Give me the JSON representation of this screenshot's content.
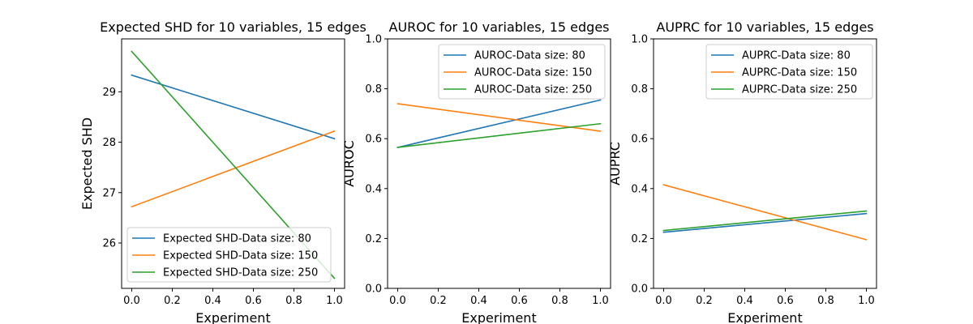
{
  "colors": {
    "blue": "#1f77b4",
    "orange": "#ff7f0e",
    "green": "#2ca02c"
  },
  "chart_data": [
    {
      "type": "line",
      "title": "Expected SHD for 10 variables, 15 edges",
      "xlabel": "Experiment",
      "ylabel": "Expected SHD",
      "xlim": [
        -0.05,
        1.05
      ],
      "ylim": [
        25.1,
        30.05
      ],
      "xticks": [
        0.0,
        0.2,
        0.4,
        0.6,
        0.8,
        1.0
      ],
      "xtick_labels": [
        "0.0",
        "0.2",
        "0.4",
        "0.6",
        "0.8",
        "1.0"
      ],
      "yticks": [
        26,
        27,
        28,
        29
      ],
      "ytick_labels": [
        "26",
        "27",
        "28",
        "29"
      ],
      "legend_position": "lower-left",
      "grid": false,
      "series": [
        {
          "name": "Expected SHD-Data size: 80",
          "color": "#1f77b4",
          "x": [
            0.0,
            1.0
          ],
          "y": [
            29.33,
            28.07
          ]
        },
        {
          "name": "Expected SHD-Data size: 150",
          "color": "#ff7f0e",
          "x": [
            0.0,
            1.0
          ],
          "y": [
            26.72,
            28.22
          ]
        },
        {
          "name": "Expected SHD-Data size: 250",
          "color": "#2ca02c",
          "x": [
            0.0,
            1.0
          ],
          "y": [
            29.8,
            25.3
          ]
        }
      ]
    },
    {
      "type": "line",
      "title": "AUROC for 10 variables, 15 edges",
      "xlabel": "Experiment",
      "ylabel": "AUROC",
      "xlim": [
        -0.05,
        1.05
      ],
      "ylim": [
        0.0,
        1.0
      ],
      "xticks": [
        0.0,
        0.2,
        0.4,
        0.6,
        0.8,
        1.0
      ],
      "xtick_labels": [
        "0.0",
        "0.2",
        "0.4",
        "0.6",
        "0.8",
        "1.0"
      ],
      "yticks": [
        0.0,
        0.2,
        0.4,
        0.6,
        0.8,
        1.0
      ],
      "ytick_labels": [
        "0.0",
        "0.2",
        "0.4",
        "0.6",
        "0.8",
        "1.0"
      ],
      "legend_position": "upper-right",
      "grid": false,
      "series": [
        {
          "name": "AUROC-Data size: 80",
          "color": "#1f77b4",
          "x": [
            0.0,
            1.0
          ],
          "y": [
            0.565,
            0.755
          ]
        },
        {
          "name": "AUROC-Data size: 150",
          "color": "#ff7f0e",
          "x": [
            0.0,
            1.0
          ],
          "y": [
            0.74,
            0.63
          ]
        },
        {
          "name": "AUROC-Data size: 250",
          "color": "#2ca02c",
          "x": [
            0.0,
            1.0
          ],
          "y": [
            0.565,
            0.66
          ]
        }
      ]
    },
    {
      "type": "line",
      "title": "AUPRC for 10 variables, 15 edges",
      "xlabel": "Experiment",
      "ylabel": "AUPRC",
      "xlim": [
        -0.05,
        1.05
      ],
      "ylim": [
        0.0,
        1.0
      ],
      "xticks": [
        0.0,
        0.2,
        0.4,
        0.6,
        0.8,
        1.0
      ],
      "xtick_labels": [
        "0.0",
        "0.2",
        "0.4",
        "0.6",
        "0.8",
        "1.0"
      ],
      "yticks": [
        0.0,
        0.2,
        0.4,
        0.6,
        0.8,
        1.0
      ],
      "ytick_labels": [
        "0.0",
        "0.2",
        "0.4",
        "0.6",
        "0.8",
        "1.0"
      ],
      "legend_position": "upper-right",
      "grid": false,
      "series": [
        {
          "name": "AUPRC-Data size: 80",
          "color": "#1f77b4",
          "x": [
            0.0,
            1.0
          ],
          "y": [
            0.225,
            0.3
          ]
        },
        {
          "name": "AUPRC-Data size: 150",
          "color": "#ff7f0e",
          "x": [
            0.0,
            1.0
          ],
          "y": [
            0.415,
            0.195
          ]
        },
        {
          "name": "AUPRC-Data size: 250",
          "color": "#2ca02c",
          "x": [
            0.0,
            1.0
          ],
          "y": [
            0.232,
            0.31
          ]
        }
      ]
    }
  ]
}
